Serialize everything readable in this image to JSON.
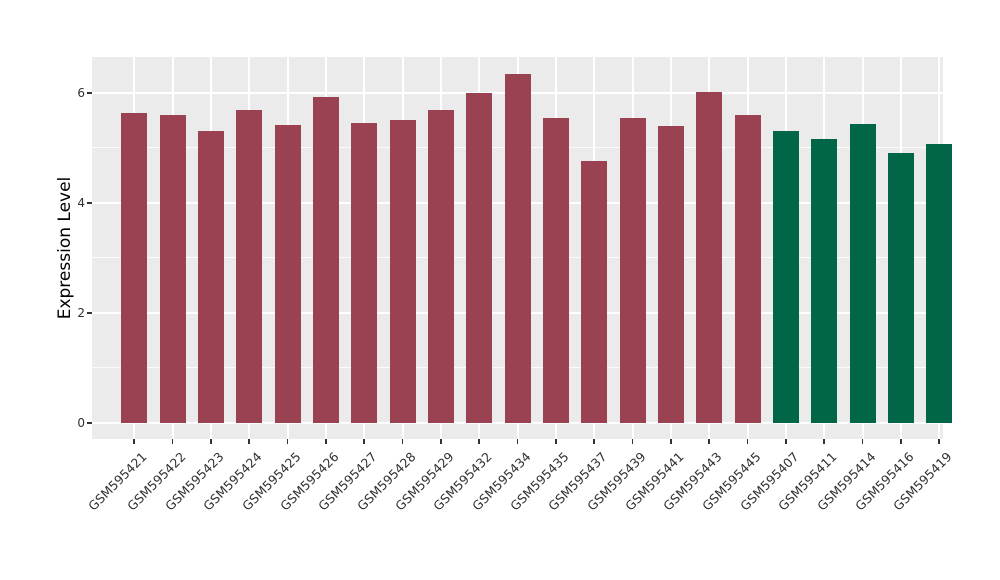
{
  "figure": {
    "background": "#FFFFFF",
    "panel_background": "#EBEBEB",
    "grid_color": "#FFFFFF",
    "tick_color": "#333333",
    "axis_text_color": "#303030"
  },
  "chart_data": {
    "type": "bar",
    "title": "",
    "xlabel": "",
    "ylabel": "Expression Level",
    "ylim": [
      -0.29,
      6.65
    ],
    "yticks": [
      0,
      2,
      4,
      6
    ],
    "yticks_minor": [
      1,
      3,
      5
    ],
    "grid": true,
    "legend": false,
    "categories": [
      "GSM595421",
      "GSM595422",
      "GSM595423",
      "GSM595424",
      "GSM595425",
      "GSM595426",
      "GSM595427",
      "GSM595428",
      "GSM595429",
      "GSM595432",
      "GSM595434",
      "GSM595435",
      "GSM595437",
      "GSM595439",
      "GSM595441",
      "GSM595443",
      "GSM595445",
      "GSM595407",
      "GSM595411",
      "GSM595414",
      "GSM595416",
      "GSM595419"
    ],
    "values": [
      5.63,
      5.6,
      5.31,
      5.68,
      5.42,
      5.93,
      5.45,
      5.51,
      5.69,
      6.0,
      6.35,
      5.54,
      4.76,
      5.55,
      5.4,
      6.01,
      5.6,
      5.3,
      5.16,
      5.43,
      4.91,
      5.07
    ],
    "groups": [
      "red",
      "red",
      "red",
      "red",
      "red",
      "red",
      "red",
      "red",
      "red",
      "red",
      "red",
      "red",
      "red",
      "red",
      "red",
      "red",
      "red",
      "green",
      "green",
      "green",
      "green",
      "green"
    ],
    "group_colors": {
      "red": "#9A4251",
      "green": "#006647"
    }
  }
}
